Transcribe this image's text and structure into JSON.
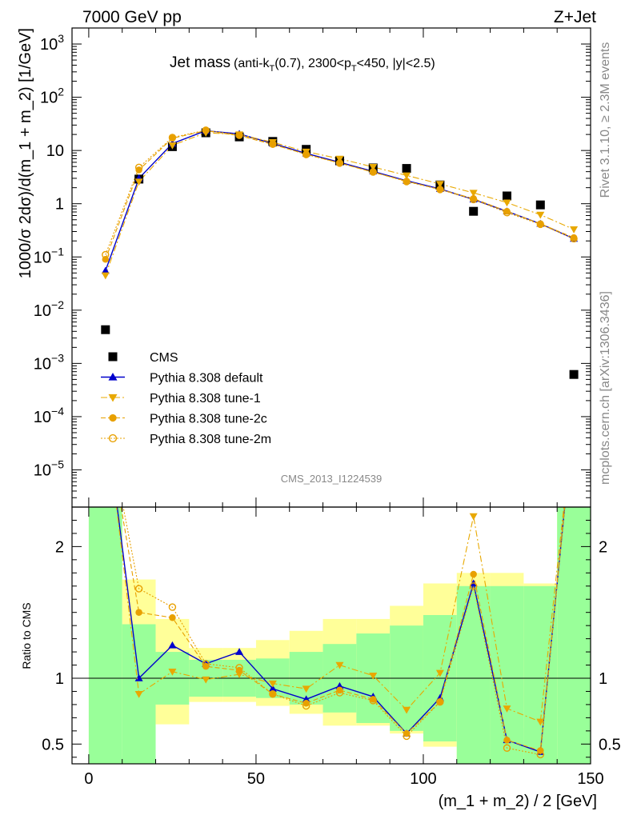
{
  "header": {
    "left": "7000 GeV pp",
    "right": "Z+Jet"
  },
  "side_labels": {
    "rivet": "Rivet 3.1.10, ≥ 2.3M events",
    "mcplots": "mcplots.cern.ch [arXiv:1306.3436]"
  },
  "watermark": "CMS_2013_I1224539",
  "chart_data": [
    {
      "type": "line",
      "panel": "main",
      "title_main": "Jet mass",
      "title_cut_prefix": "(anti-k",
      "title_cut_sub1": "T",
      "title_cut_mid": "(0.7), 2300<p",
      "title_cut_sub2": "T",
      "title_cut_suffix": "<450, |y|<2.5)",
      "ylabel": "1000/σ 2dσ)/d(m_1 + m_2) [1/GeV]",
      "xlabel": "",
      "yscale": "log",
      "ylim": [
        2e-06,
        2000
      ],
      "xlim": [
        -5,
        150
      ],
      "y_ticks": [
        {
          "value": 1e-05,
          "base": "10",
          "exp": "−5"
        },
        {
          "value": 0.0001,
          "base": "10",
          "exp": "−4"
        },
        {
          "value": 0.001,
          "base": "10",
          "exp": "−3"
        },
        {
          "value": 0.01,
          "base": "10",
          "exp": "−2"
        },
        {
          "value": 0.1,
          "base": "10",
          "exp": "−1"
        },
        {
          "value": 1,
          "base": "1",
          "exp": ""
        },
        {
          "value": 10,
          "base": "10",
          "exp": ""
        },
        {
          "value": 100,
          "base": "10",
          "exp": "2"
        },
        {
          "value": 1000,
          "base": "10",
          "exp": "3"
        }
      ],
      "x": [
        5,
        15,
        25,
        35,
        45,
        55,
        65,
        75,
        85,
        95,
        105,
        115,
        125,
        135,
        145
      ],
      "series": [
        {
          "name": "CMS",
          "marker": "square",
          "color": "#000000",
          "line": "none",
          "values": [
            0.0043,
            2.9,
            11.8,
            21.5,
            18.0,
            14.8,
            10.5,
            6.4,
            4.7,
            4.6,
            2.25,
            0.72,
            1.4,
            0.95,
            0.00062
          ]
        },
        {
          "name": "Pythia 8.308 default",
          "marker": "triangle-up",
          "color": "#0000cc",
          "line": "solid",
          "values": [
            0.055,
            3.0,
            13.5,
            23.5,
            20.5,
            13.5,
            8.8,
            6.0,
            4.05,
            2.7,
            1.9,
            1.2,
            0.72,
            0.42,
            0.22
          ]
        },
        {
          "name": "Pythia 8.308 tune-1",
          "marker": "triangle-down",
          "color": "#e8a800",
          "line": "dash-dot",
          "values": [
            0.045,
            2.6,
            12.5,
            21.5,
            20.0,
            14.3,
            9.5,
            7.0,
            4.9,
            3.4,
            2.35,
            1.6,
            1.05,
            0.62,
            0.33
          ]
        },
        {
          "name": "Pythia 8.308 tune-2c",
          "marker": "circle",
          "color": "#e8a000",
          "line": "dashed",
          "values": [
            0.09,
            4.3,
            17.0,
            23.5,
            19.0,
            13.0,
            8.5,
            5.8,
            3.9,
            2.65,
            1.85,
            1.25,
            0.72,
            0.42,
            0.23
          ]
        },
        {
          "name": "Pythia 8.308 tune-2m",
          "marker": "circle-open",
          "color": "#e8a000",
          "line": "dotted",
          "values": [
            0.11,
            4.8,
            17.5,
            24.0,
            19.5,
            13.2,
            8.4,
            5.8,
            3.95,
            2.6,
            1.85,
            1.2,
            0.68,
            0.41,
            0.22
          ]
        }
      ],
      "legend_placement": "lower-left"
    },
    {
      "type": "line",
      "panel": "ratio",
      "ylabel": "Ratio to CMS",
      "xlabel": "(m_1 + m_2) / 2 [GeV]",
      "ylim": [
        0.35,
        2.3
      ],
      "xlim": [
        -5,
        150
      ],
      "x_ticks": [
        0,
        50,
        100,
        150
      ],
      "y_ticks": [
        0.5,
        1,
        2
      ],
      "reference_line": 1,
      "bands": {
        "bin_edges": [
          0,
          10,
          20,
          30,
          40,
          50,
          60,
          70,
          80,
          90,
          100,
          110,
          120,
          130,
          140,
          150
        ],
        "inner_color": "#99ff99",
        "outer_color": "#ffff99",
        "inner_lower": [
          0.0,
          0.0,
          0.8,
          0.86,
          0.86,
          0.85,
          0.8,
          0.74,
          0.66,
          0.6,
          0.52,
          0.3,
          0.3,
          0.3,
          0.0
        ],
        "inner_upper": [
          99,
          1.41,
          1.2,
          1.14,
          1.14,
          1.15,
          1.2,
          1.26,
          1.34,
          1.4,
          1.48,
          1.7,
          1.7,
          1.7,
          99
        ],
        "outer_lower": [
          0.0,
          0.7,
          0.65,
          0.82,
          0.82,
          0.79,
          0.73,
          0.64,
          0.64,
          0.58,
          0.48,
          0.37,
          0.0,
          0.62,
          0.0
        ],
        "outer_upper": [
          99,
          1.75,
          1.45,
          1.23,
          1.23,
          1.29,
          1.36,
          1.45,
          1.45,
          1.55,
          1.72,
          1.8,
          1.8,
          1.72,
          99
        ]
      },
      "series": [
        {
          "name": "Pythia 8.308 default",
          "values": [
            3.0,
            1.0,
            1.25,
            1.11,
            1.2,
            0.92,
            0.84,
            0.94,
            0.86,
            0.58,
            0.85,
            1.72,
            0.53,
            0.44,
            3.0
          ]
        },
        {
          "name": "Pythia 8.308 tune-1",
          "values": [
            3.0,
            0.88,
            1.05,
            0.99,
            1.03,
            0.96,
            0.92,
            1.1,
            1.02,
            0.76,
            1.04,
            2.23,
            0.77,
            0.67,
            3.0
          ]
        },
        {
          "name": "Pythia 8.308 tune-2c",
          "values": [
            3.0,
            1.5,
            1.46,
            1.09,
            1.06,
            0.88,
            0.81,
            0.91,
            0.84,
            0.58,
            0.82,
            1.79,
            0.53,
            0.45,
            3.0
          ]
        },
        {
          "name": "Pythia 8.308 tune-2m",
          "values": [
            3.0,
            1.68,
            1.54,
            1.11,
            1.08,
            0.88,
            0.79,
            0.89,
            0.83,
            0.56,
            0.82,
            1.7,
            0.47,
            0.42,
            3.0
          ]
        }
      ]
    }
  ]
}
